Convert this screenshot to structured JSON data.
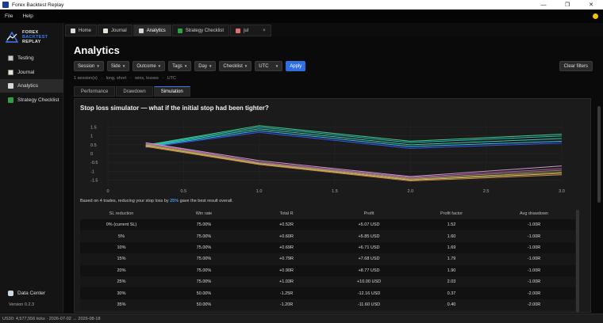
{
  "window": {
    "title": "Forex Backtest Replay",
    "minimize": "—",
    "maximize": "❐",
    "close": "✕"
  },
  "menubar": {
    "items": [
      "File",
      "Help"
    ]
  },
  "logo": {
    "line1": "FOREX",
    "line2": "BACKTEST",
    "line3": "REPLAY"
  },
  "sidebar": {
    "items": [
      {
        "label": "Testing",
        "icon": "testing-icon"
      },
      {
        "label": "Journal",
        "icon": "journal-icon"
      },
      {
        "label": "Analytics",
        "icon": "analytics-icon",
        "active": true
      },
      {
        "label": "Strategy  Checklist",
        "icon": "checklist-icon"
      }
    ],
    "data_center": "Data Center",
    "version": "Version 0.2.3"
  },
  "tabs": [
    {
      "label": "Home",
      "icon": "home-icon"
    },
    {
      "label": "Journal",
      "icon": "journal-icon"
    },
    {
      "label": "Analytics",
      "icon": "analytics-icon",
      "active": true
    },
    {
      "label": "Strategy  Checklist",
      "icon": "checklist-icon"
    },
    {
      "label": "jul",
      "icon": "chart-icon",
      "close": "×"
    }
  ],
  "page": {
    "title": "Analytics"
  },
  "filters": {
    "buttons": [
      "Session",
      "Side",
      "Outcome",
      "Tags",
      "Day",
      "Checklist"
    ],
    "timezone": "UTC",
    "apply": "Apply",
    "clear": "Clear filters"
  },
  "summary": {
    "sessions": "1 session(s)",
    "sep": "·",
    "sides": "long, short",
    "outcomes": "wins, losses",
    "tz": "UTC"
  },
  "subtabs": [
    {
      "label": "Performance"
    },
    {
      "label": "Drawdown"
    },
    {
      "label": "Simulation",
      "active": true
    }
  ],
  "panel": {
    "title": "Stop loss simulator  —  what if the initial stop had been tighter?",
    "note_prefix": "Based on 4 trades, reducing your stop loss by ",
    "note_highlight": "25%",
    "note_suffix": " gave the best result overall."
  },
  "chart_data": {
    "type": "line",
    "x": [
      0.25,
      1.0,
      2.0,
      3.0
    ],
    "xticks": [
      "0",
      "0.5",
      "1.0",
      "1.5",
      "2.0",
      "2.5",
      "3.0"
    ],
    "yticks": [
      "1.5",
      "1",
      "0.5",
      "0",
      "-0.5",
      "-1",
      "-1.5"
    ],
    "xlim": [
      0,
      3.0
    ],
    "ylim": [
      -1.75,
      1.75
    ],
    "grid": true,
    "series": [
      {
        "color": "#3355ee",
        "values": [
          0.35,
          1.2,
          0.3,
          0.6
        ]
      },
      {
        "color": "#33bbee",
        "values": [
          0.38,
          1.3,
          0.4,
          0.7
        ]
      },
      {
        "color": "#33ccaa",
        "values": [
          0.42,
          1.4,
          0.5,
          0.85
        ]
      },
      {
        "color": "#22bbbb",
        "values": [
          0.45,
          1.5,
          0.62,
          1.0
        ]
      },
      {
        "color": "#44cc88",
        "values": [
          0.48,
          1.58,
          0.7,
          1.1
        ]
      },
      {
        "color": "#cc8844",
        "values": [
          0.4,
          -0.62,
          -1.55,
          -1.2
        ]
      },
      {
        "color": "#ddbb66",
        "values": [
          0.45,
          -0.58,
          -1.5,
          -1.12
        ]
      },
      {
        "color": "#99aa55",
        "values": [
          0.5,
          -0.55,
          -1.45,
          -1.05
        ]
      },
      {
        "color": "#bb7777",
        "values": [
          0.55,
          -0.5,
          -1.4,
          -0.95
        ]
      },
      {
        "color": "#aa66aa",
        "values": [
          0.6,
          -0.48,
          -1.35,
          -0.85
        ]
      },
      {
        "color": "#cc99cc",
        "values": [
          0.62,
          -0.4,
          -1.3,
          -0.7
        ]
      }
    ]
  },
  "table": {
    "headers": [
      "SL reduction",
      "Win rate",
      "Total R",
      "Profit",
      "Profit factor",
      "Avg drawdown"
    ],
    "rows": [
      [
        "0% (current SL)",
        "75.00%",
        "+0.52R",
        "+5.07 USD",
        "1.52",
        "-1.00R"
      ],
      [
        "5%",
        "75.00%",
        "+0.60R",
        "+5.85 USD",
        "1.60",
        "-1.00R"
      ],
      [
        "10%",
        "75.00%",
        "+0.69R",
        "+6.71 USD",
        "1.69",
        "-1.00R"
      ],
      [
        "15%",
        "75.00%",
        "+0.79R",
        "+7.68 USD",
        "1.79",
        "-1.00R"
      ],
      [
        "20%",
        "75.00%",
        "+0.90R",
        "+8.77 USD",
        "1.90",
        "-1.00R"
      ],
      [
        "25%",
        "75.00%",
        "+1.03R",
        "+10.00 USD",
        "2.03",
        "-1.00R"
      ],
      [
        "30%",
        "50.00%",
        "-1.25R",
        "-12.16 USD",
        "0.37",
        "-2.00R"
      ],
      [
        "35%",
        "50.00%",
        "-1.20R",
        "-11.60 USD",
        "0.40",
        "-2.00R"
      ]
    ]
  },
  "statusbar": {
    "text": "US30: 4,577,556 ticks · 2026-07-02 → 2026-08-18"
  }
}
